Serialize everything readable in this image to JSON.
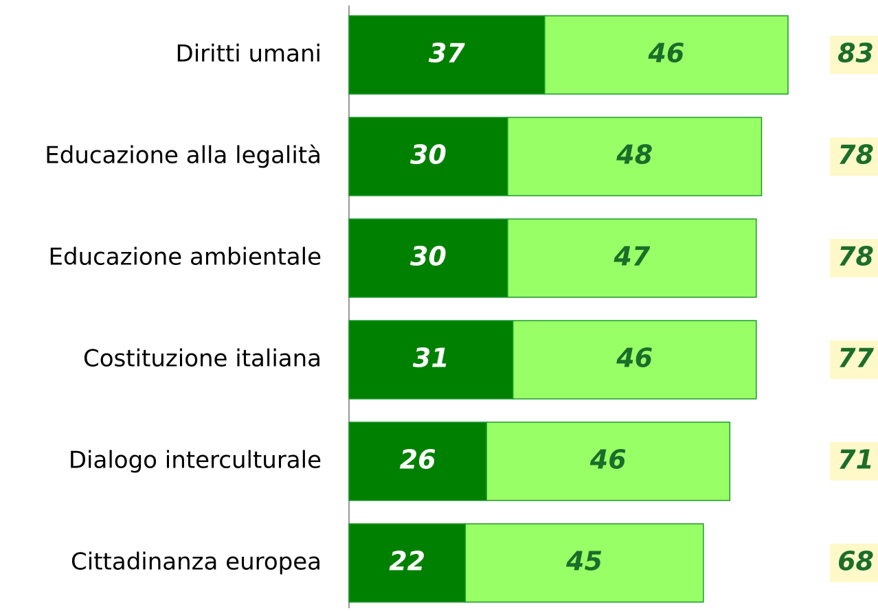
{
  "chart_data": {
    "type": "stacked-bar-horizontal",
    "categories": [
      "Diritti umani",
      "Educazione alla legalità",
      "Educazione ambientale",
      "Costituzione italiana",
      "Dialogo interculturale",
      "Cittadinanza europea"
    ],
    "series": [
      {
        "color": "#008000",
        "label_color": "#ffffff",
        "values": [
          37,
          30,
          30,
          31,
          26,
          22
        ]
      },
      {
        "color": "#99ff66",
        "label_color": "#1a6e2a",
        "values": [
          46,
          48,
          47,
          46,
          46,
          45
        ]
      }
    ],
    "totals": [
      83,
      78,
      78,
      77,
      71,
      68
    ],
    "totals_background": "#fff8c8",
    "totals_color": "#1a6e2a"
  }
}
